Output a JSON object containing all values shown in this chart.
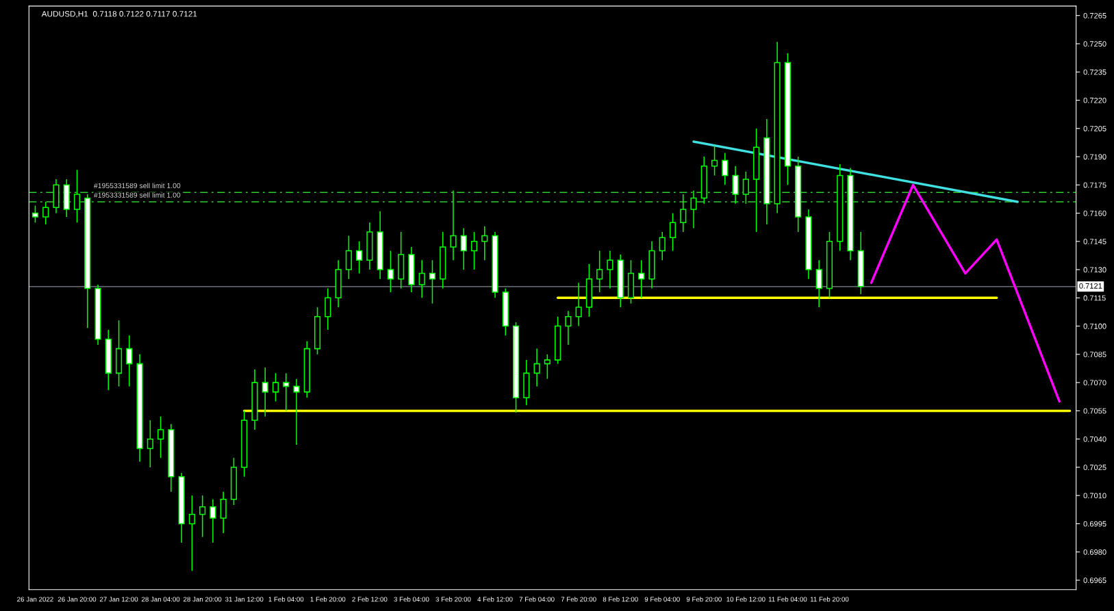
{
  "chart_data": {
    "type": "candlestick",
    "title": "AUDUSD,H1  0.7118 0.7122 0.7117 0.7121",
    "categories": [
      "26 Jan 2022",
      null,
      null,
      null,
      "26 Jan 20:00",
      null,
      null,
      null,
      "27 Jan 12:00",
      null,
      null,
      null,
      "28 Jan 04:00",
      null,
      null,
      null,
      "28 Jan 20:00",
      null,
      null,
      null,
      "31 Jan 12:00",
      null,
      null,
      null,
      "1 Feb 04:00",
      null,
      null,
      null,
      "1 Feb 20:00",
      null,
      null,
      null,
      "2 Feb 12:00",
      null,
      null,
      null,
      "3 Feb 04:00",
      null,
      null,
      null,
      "3 Feb 20:00",
      null,
      null,
      null,
      "4 Feb 12:00",
      null,
      null,
      null,
      "7 Feb 04:00",
      null,
      null,
      null,
      "7 Feb 20:00",
      null,
      null,
      null,
      "8 Feb 12:00",
      null,
      null,
      null,
      "9 Feb 04:00",
      null,
      null,
      null,
      "9 Feb 20:00",
      null,
      null,
      null,
      "10 Feb 12:00",
      null,
      null,
      null,
      "11 Feb 04:00",
      null,
      null,
      null,
      "11 Feb 20:00",
      null,
      null,
      null,
      null,
      null,
      null,
      null,
      null,
      null,
      null,
      null,
      null,
      null,
      null,
      null,
      null,
      null,
      null,
      null,
      null,
      null,
      null,
      null
    ],
    "color": "#00ff00",
    "ohlc": [
      [
        0.716,
        0.7164,
        0.7155,
        0.7158
      ],
      [
        0.7158,
        0.7166,
        0.7154,
        0.7163
      ],
      [
        0.7163,
        0.7178,
        0.716,
        0.7175
      ],
      [
        0.7175,
        0.7178,
        0.7158,
        0.7162
      ],
      [
        0.7162,
        0.7183,
        0.7155,
        0.717
      ],
      [
        0.7168,
        0.717,
        0.7099,
        0.712
      ],
      [
        0.712,
        0.7122,
        0.709,
        0.7093
      ],
      [
        0.7093,
        0.7098,
        0.7066,
        0.7075
      ],
      [
        0.7075,
        0.7103,
        0.7068,
        0.7088
      ],
      [
        0.7088,
        0.7095,
        0.7068,
        0.708
      ],
      [
        0.708,
        0.7085,
        0.7028,
        0.7035
      ],
      [
        0.7035,
        0.705,
        0.7025,
        0.704
      ],
      [
        0.704,
        0.7052,
        0.703,
        0.7045
      ],
      [
        0.7045,
        0.7048,
        0.7012,
        0.702
      ],
      [
        0.702,
        0.7022,
        0.6985,
        0.6995
      ],
      [
        0.6995,
        0.701,
        0.697,
        0.7
      ],
      [
        0.7,
        0.701,
        0.6988,
        0.7004
      ],
      [
        0.7004,
        0.7008,
        0.6985,
        0.6998
      ],
      [
        0.6998,
        0.7012,
        0.699,
        0.7008
      ],
      [
        0.7008,
        0.703,
        0.7005,
        0.7025
      ],
      [
        0.7025,
        0.7055,
        0.702,
        0.705
      ],
      [
        0.705,
        0.7077,
        0.7045,
        0.707
      ],
      [
        0.707,
        0.7078,
        0.7052,
        0.7065
      ],
      [
        0.7065,
        0.7075,
        0.706,
        0.707
      ],
      [
        0.707,
        0.7075,
        0.7055,
        0.7068
      ],
      [
        0.7068,
        0.7072,
        0.7037,
        0.7065
      ],
      [
        0.7065,
        0.7092,
        0.7062,
        0.7088
      ],
      [
        0.7088,
        0.711,
        0.7085,
        0.7105
      ],
      [
        0.7105,
        0.712,
        0.7098,
        0.7115
      ],
      [
        0.7115,
        0.7135,
        0.711,
        0.713
      ],
      [
        0.713,
        0.7148,
        0.7125,
        0.714
      ],
      [
        0.714,
        0.7145,
        0.7128,
        0.7135
      ],
      [
        0.7135,
        0.7155,
        0.713,
        0.715
      ],
      [
        0.715,
        0.7161,
        0.7125,
        0.713
      ],
      [
        0.713,
        0.714,
        0.7118,
        0.7125
      ],
      [
        0.7125,
        0.715,
        0.712,
        0.7138
      ],
      [
        0.7138,
        0.7142,
        0.7118,
        0.7122
      ],
      [
        0.7122,
        0.7135,
        0.7115,
        0.7128
      ],
      [
        0.7128,
        0.7135,
        0.7112,
        0.7125
      ],
      [
        0.7125,
        0.715,
        0.712,
        0.7142
      ],
      [
        0.7142,
        0.7172,
        0.7135,
        0.7148
      ],
      [
        0.7148,
        0.7152,
        0.713,
        0.714
      ],
      [
        0.714,
        0.715,
        0.713,
        0.7145
      ],
      [
        0.7145,
        0.7153,
        0.7135,
        0.7148
      ],
      [
        0.7148,
        0.715,
        0.7115,
        0.7118
      ],
      [
        0.7118,
        0.712,
        0.7095,
        0.71
      ],
      [
        0.71,
        0.7102,
        0.7054,
        0.7062
      ],
      [
        0.7062,
        0.7082,
        0.7058,
        0.7075
      ],
      [
        0.7075,
        0.7088,
        0.7068,
        0.708
      ],
      [
        0.708,
        0.7085,
        0.7072,
        0.7082
      ],
      [
        0.7082,
        0.7105,
        0.708,
        0.71
      ],
      [
        0.71,
        0.7108,
        0.709,
        0.7105
      ],
      [
        0.7105,
        0.7123,
        0.71,
        0.711
      ],
      [
        0.711,
        0.7133,
        0.7105,
        0.7125
      ],
      [
        0.7125,
        0.714,
        0.7118,
        0.713
      ],
      [
        0.713,
        0.714,
        0.712,
        0.7135
      ],
      [
        0.7135,
        0.7138,
        0.711,
        0.7115
      ],
      [
        0.7115,
        0.7135,
        0.7112,
        0.7128
      ],
      [
        0.7128,
        0.7135,
        0.7115,
        0.7125
      ],
      [
        0.7125,
        0.7145,
        0.712,
        0.714
      ],
      [
        0.714,
        0.715,
        0.7135,
        0.7147
      ],
      [
        0.7147,
        0.716,
        0.714,
        0.7155
      ],
      [
        0.7155,
        0.717,
        0.715,
        0.7162
      ],
      [
        0.7162,
        0.7172,
        0.7152,
        0.7168
      ],
      [
        0.7168,
        0.719,
        0.7165,
        0.7185
      ],
      [
        0.7185,
        0.7196,
        0.718,
        0.7188
      ],
      [
        0.7188,
        0.7192,
        0.7175,
        0.718
      ],
      [
        0.718,
        0.7185,
        0.7165,
        0.717
      ],
      [
        0.717,
        0.7182,
        0.7165,
        0.7178
      ],
      [
        0.7178,
        0.7205,
        0.715,
        0.7195
      ],
      [
        0.72,
        0.721,
        0.7154,
        0.7165
      ],
      [
        0.7165,
        0.7251,
        0.716,
        0.724
      ],
      [
        0.724,
        0.7245,
        0.7175,
        0.7185
      ],
      [
        0.7185,
        0.719,
        0.715,
        0.7158
      ],
      [
        0.7158,
        0.7162,
        0.7125,
        0.713
      ],
      [
        0.713,
        0.7135,
        0.711,
        0.712
      ],
      [
        0.712,
        0.715,
        0.7115,
        0.7145
      ],
      [
        0.7145,
        0.7186,
        0.714,
        0.718
      ],
      [
        0.718,
        0.7184,
        0.7135,
        0.714
      ],
      [
        0.714,
        0.715,
        0.7117,
        0.7121
      ],
      null,
      null,
      null,
      null,
      null,
      null,
      null,
      null,
      null,
      null,
      null,
      null,
      null,
      null,
      null,
      null,
      null,
      null,
      null,
      null
    ],
    "series": [
      {
        "type": "line",
        "color": "#40e0e0",
        "values": [
          null,
          null,
          null,
          null,
          null,
          null,
          null,
          null,
          null,
          null,
          null,
          null,
          null,
          null,
          null,
          null,
          null,
          null,
          null,
          null,
          null,
          null,
          null,
          null,
          null,
          null,
          null,
          null,
          null,
          null,
          null,
          null,
          null,
          null,
          null,
          null,
          null,
          null,
          null,
          null,
          null,
          null,
          null,
          null,
          null,
          null,
          null,
          null,
          null,
          null,
          null,
          null,
          null,
          null,
          null,
          null,
          null,
          null,
          null,
          null,
          null,
          null,
          null,
          0.7198,
          null,
          null,
          null,
          null,
          null,
          null,
          null,
          null,
          null,
          null,
          null,
          null,
          null,
          null,
          null,
          null,
          null,
          null,
          null,
          null,
          null,
          null,
          null,
          null,
          null,
          null,
          null,
          null,
          null,
          null,
          0.7166,
          null,
          null,
          null,
          null,
          null
        ]
      },
      {
        "type": "line",
        "color": "#ff00ff",
        "values": [
          null,
          null,
          null,
          null,
          null,
          null,
          null,
          null,
          null,
          null,
          null,
          null,
          null,
          null,
          null,
          null,
          null,
          null,
          null,
          null,
          null,
          null,
          null,
          null,
          null,
          null,
          null,
          null,
          null,
          null,
          null,
          null,
          null,
          null,
          null,
          null,
          null,
          null,
          null,
          null,
          null,
          null,
          null,
          null,
          null,
          null,
          null,
          null,
          null,
          null,
          null,
          null,
          null,
          null,
          null,
          null,
          null,
          null,
          null,
          null,
          null,
          null,
          null,
          null,
          null,
          null,
          null,
          null,
          null,
          null,
          null,
          null,
          null,
          null,
          null,
          null,
          null,
          null,
          null,
          null,
          0.7123,
          null,
          null,
          null,
          0.7175,
          null,
          null,
          null,
          null,
          0.7128,
          null,
          null,
          0.7146,
          null,
          null,
          null,
          null,
          null,
          0.706,
          null
        ]
      },
      {
        "type": "line",
        "color": "#ffff00",
        "values": [
          null,
          null,
          null,
          null,
          null,
          null,
          null,
          null,
          null,
          null,
          null,
          null,
          null,
          null,
          null,
          null,
          null,
          null,
          null,
          null,
          null,
          null,
          null,
          null,
          null,
          null,
          null,
          null,
          null,
          null,
          null,
          null,
          null,
          null,
          null,
          null,
          null,
          null,
          null,
          null,
          null,
          null,
          null,
          null,
          null,
          null,
          null,
          null,
          null,
          null,
          0.7115,
          null,
          null,
          null,
          null,
          null,
          null,
          null,
          null,
          null,
          null,
          null,
          null,
          null,
          null,
          null,
          null,
          null,
          null,
          null,
          null,
          null,
          null,
          null,
          null,
          null,
          null,
          null,
          null,
          null,
          null,
          null,
          null,
          null,
          null,
          null,
          null,
          null,
          null,
          null,
          null,
          null,
          0.7115,
          null,
          null,
          null,
          null,
          null,
          null,
          null
        ]
      },
      {
        "type": "line",
        "color": "#ffff00",
        "values": [
          null,
          null,
          null,
          null,
          null,
          null,
          null,
          null,
          null,
          null,
          null,
          null,
          null,
          null,
          null,
          null,
          null,
          null,
          null,
          null,
          0.7055,
          null,
          null,
          null,
          null,
          null,
          null,
          null,
          null,
          null,
          null,
          null,
          null,
          null,
          null,
          null,
          null,
          null,
          null,
          null,
          null,
          null,
          null,
          null,
          null,
          null,
          null,
          null,
          null,
          null,
          null,
          null,
          null,
          null,
          null,
          null,
          null,
          null,
          null,
          null,
          null,
          null,
          null,
          null,
          null,
          null,
          null,
          null,
          null,
          null,
          null,
          null,
          null,
          null,
          null,
          null,
          null,
          null,
          null,
          null,
          null,
          null,
          null,
          null,
          null,
          null,
          null,
          null,
          null,
          null,
          null,
          null,
          null,
          null,
          null,
          null,
          null,
          null,
          null,
          0.7055
        ]
      }
    ],
    "ref_lines": [
      {
        "axis": "y",
        "value": 0.7121,
        "label": "0.7121",
        "color": "#808890",
        "line_style": "solid"
      },
      {
        "axis": "y",
        "value": 0.7171,
        "label": "#1955331589 sell limit 1.00",
        "color": "#32cd32",
        "line_style": "dashed"
      },
      {
        "axis": "y",
        "value": 0.7166,
        "label": "#1953331589 sell limit 1.00",
        "color": "#32cd32",
        "line_style": "dashed"
      }
    ],
    "ylim": [
      0.696,
      0.727
    ],
    "yticks": [
      0.6965,
      {
        "value": 0.698,
        "label": "0.6980"
      },
      0.6995,
      {
        "value": 0.701,
        "label": "0.7010"
      },
      0.7025,
      {
        "value": 0.704,
        "label": "0.7040"
      },
      0.7055,
      {
        "value": 0.707,
        "label": "0.7070"
      },
      0.7085,
      {
        "value": 0.71,
        "label": "0.7100"
      },
      0.7115,
      {
        "value": 0.713,
        "label": "0.7130"
      },
      0.7145,
      {
        "value": 0.716,
        "label": "0.7160"
      },
      0.7175,
      {
        "value": 0.719,
        "label": "0.7190"
      },
      0.7205,
      {
        "value": 0.722,
        "label": "0.7220"
      },
      0.7235,
      {
        "value": 0.725,
        "label": "0.7250"
      },
      0.7265
    ],
    "grid": false,
    "legend": false
  }
}
